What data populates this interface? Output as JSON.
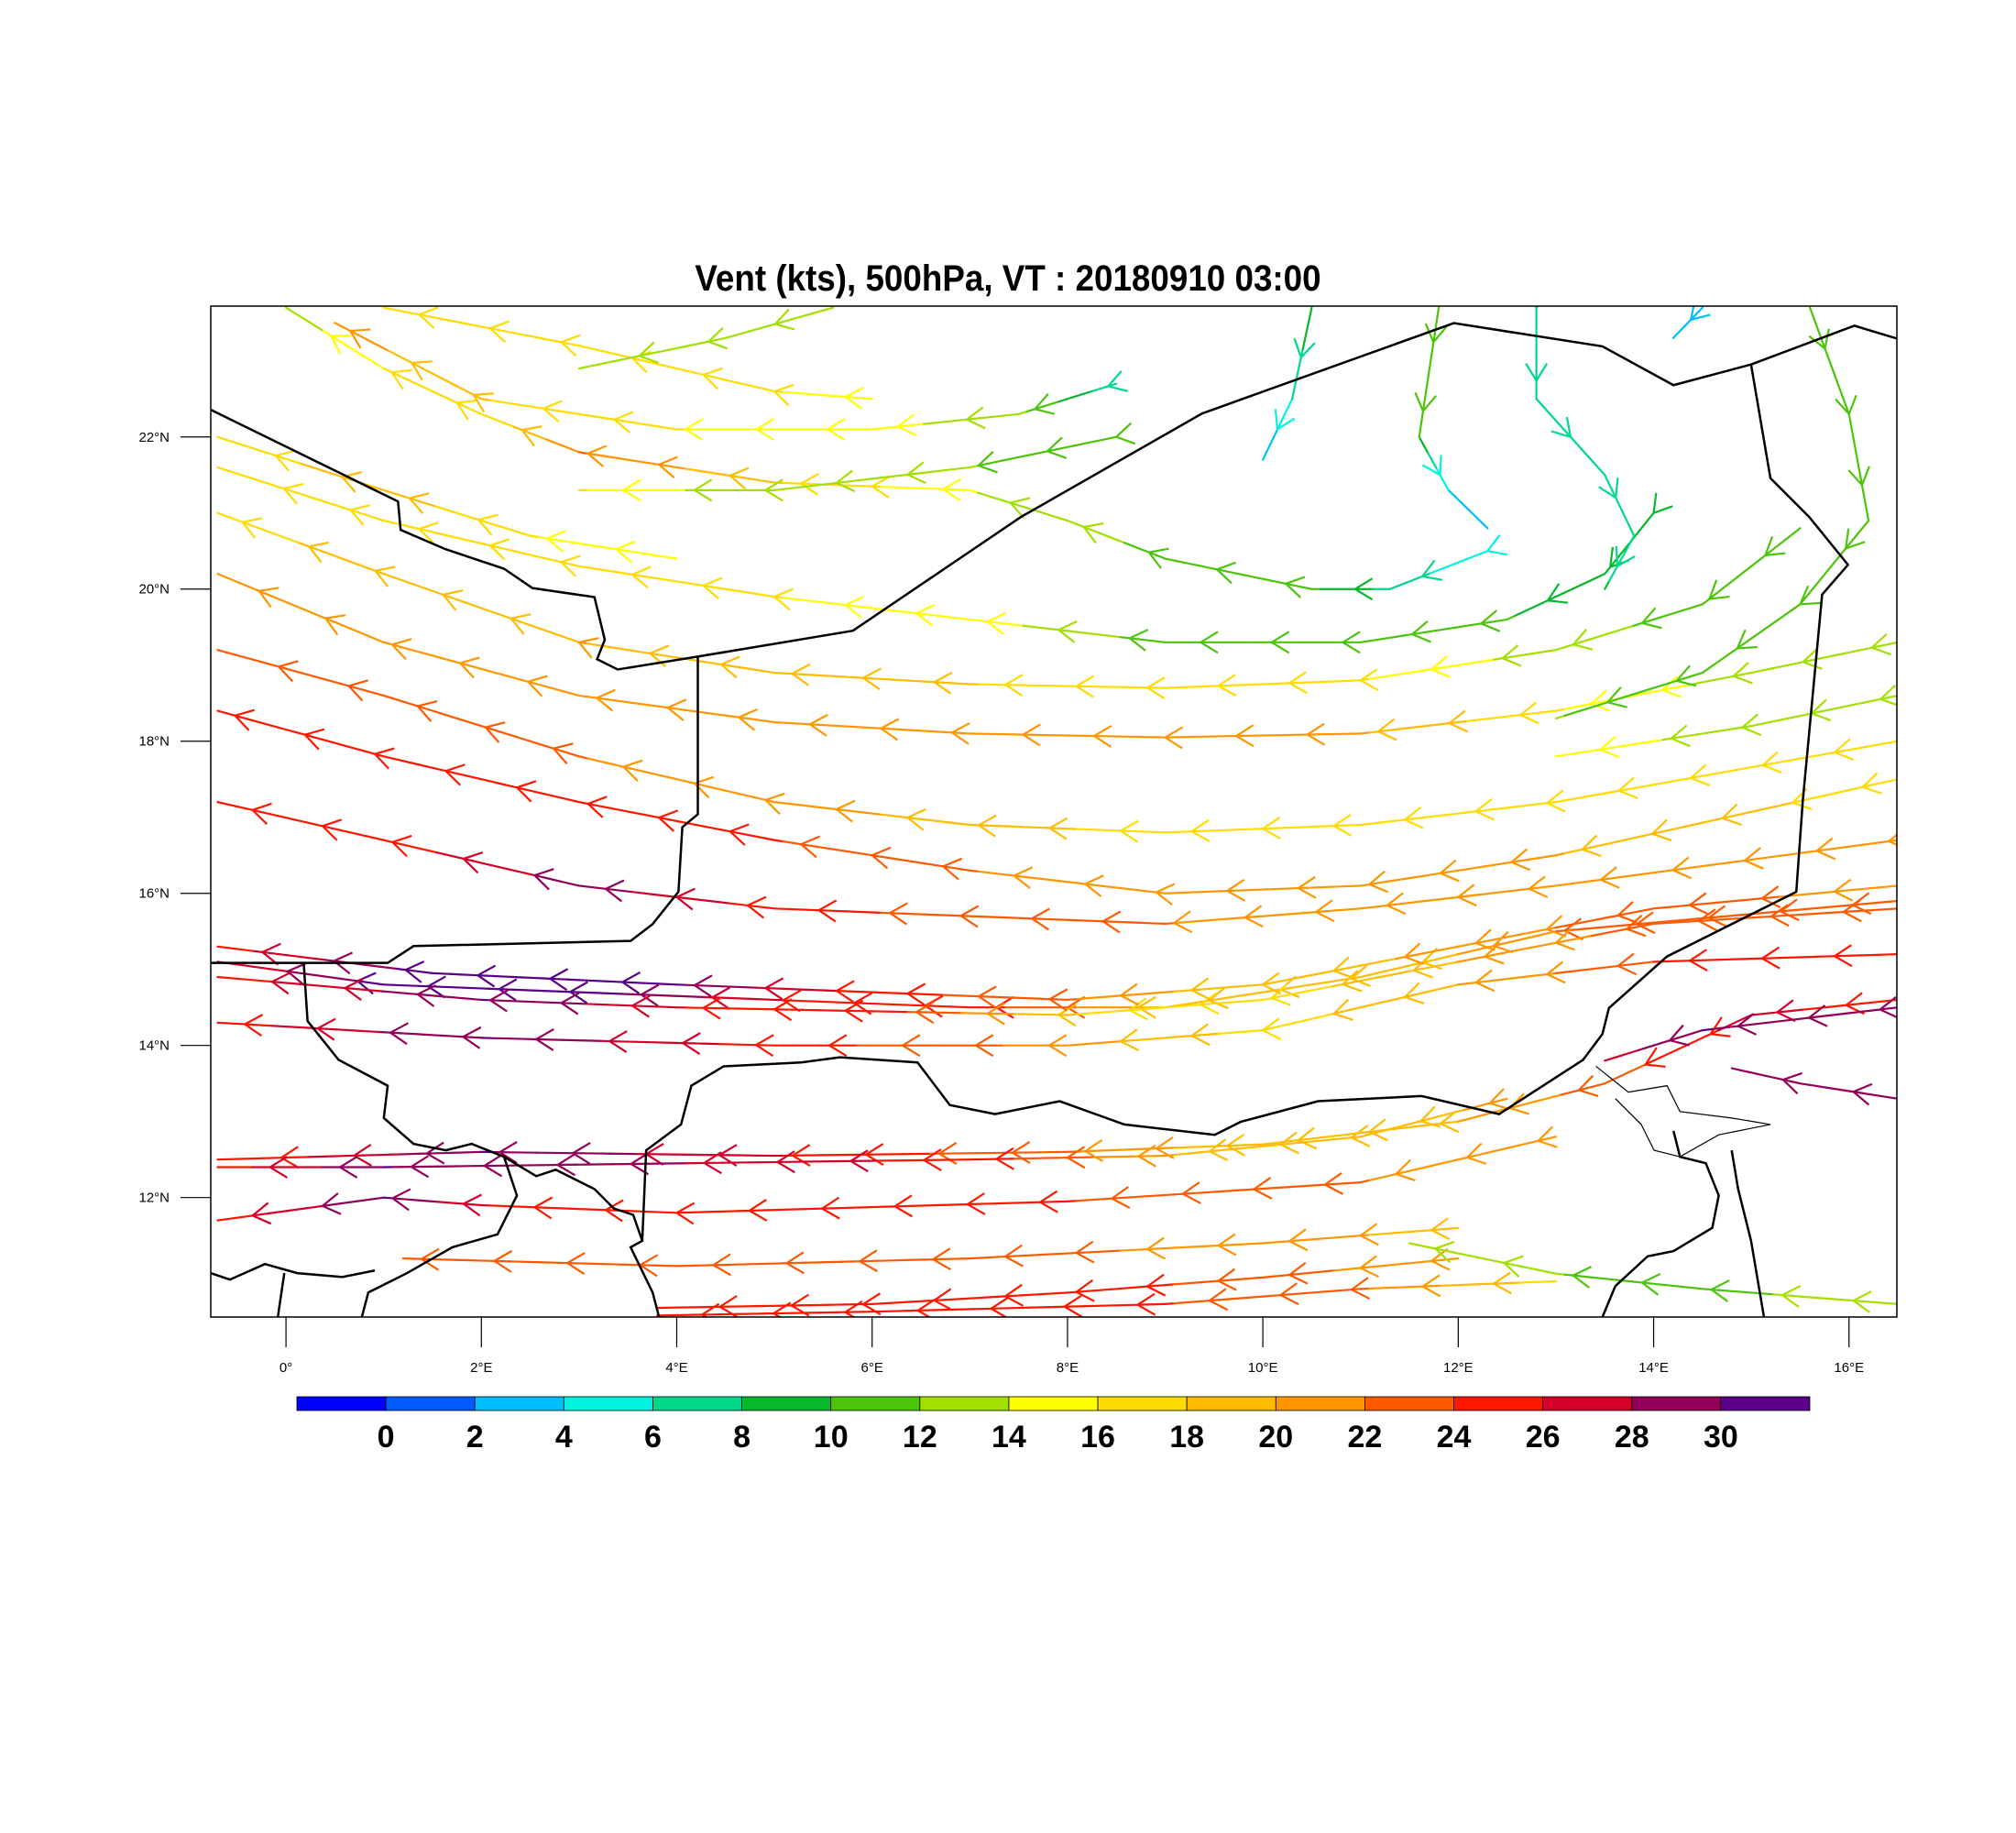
{
  "chart_data": {
    "type": "streamline",
    "title": "Vent (kts), 500hPa, VT : 20180910  03:00",
    "xlim": [
      -0.77,
      16.49
    ],
    "ylim": [
      10.43,
      23.72
    ],
    "x_ticks": [
      {
        "v": 0,
        "label": "0°"
      },
      {
        "v": 2,
        "label": "2°E"
      },
      {
        "v": 4,
        "label": "4°E"
      },
      {
        "v": 6,
        "label": "6°E"
      },
      {
        "v": 8,
        "label": "8°E"
      },
      {
        "v": 10,
        "label": "10°E"
      },
      {
        "v": 12,
        "label": "12°E"
      },
      {
        "v": 14,
        "label": "14°E"
      },
      {
        "v": 16,
        "label": "16°E"
      }
    ],
    "y_ticks": [
      {
        "v": 12,
        "label": "12°N"
      },
      {
        "v": 14,
        "label": "14°N"
      },
      {
        "v": 16,
        "label": "16°N"
      },
      {
        "v": 18,
        "label": "18°N"
      },
      {
        "v": 20,
        "label": "20°N"
      },
      {
        "v": 22,
        "label": "22°N"
      }
    ],
    "colorbar": {
      "levels": [
        "0",
        "2",
        "4",
        "6",
        "8",
        "10",
        "12",
        "14",
        "16",
        "18",
        "20",
        "22",
        "24",
        "26",
        "28",
        "30"
      ],
      "colors": [
        "#0000ff",
        "#005aff",
        "#00bfff",
        "#00f5e0",
        "#00d88a",
        "#05b82e",
        "#4cc40a",
        "#a2e000",
        "#ffff00",
        "#ffdc00",
        "#ffbc00",
        "#ff9600",
        "#ff5a00",
        "#ff1600",
        "#d4002a",
        "#920058",
        "#5a0087"
      ]
    },
    "streamlines_note_units": "lon, lat, speed(kts); flow toward first point",
    "streamlines": [
      [
        [
          -0.7,
          15.1,
          26
        ],
        [
          1,
          14.8,
          31
        ],
        [
          3,
          14.7,
          31
        ],
        [
          5,
          14.6,
          26
        ],
        [
          7,
          14.5,
          25
        ],
        [
          9,
          14.5,
          19
        ],
        [
          11,
          14.9,
          18
        ],
        [
          13,
          15.5,
          22
        ],
        [
          16.5,
          15.9,
          22
        ]
      ],
      [
        [
          -0.7,
          14.9,
          25
        ],
        [
          2,
          14.6,
          30
        ],
        [
          4,
          14.5,
          26
        ],
        [
          6,
          14.45,
          25
        ],
        [
          8,
          14.4,
          18
        ],
        [
          10,
          14.6,
          17
        ],
        [
          12,
          15.1,
          20
        ],
        [
          14,
          15.6,
          23
        ],
        [
          16.5,
          15.8,
          22
        ]
      ],
      [
        [
          -0.7,
          15.3,
          25
        ],
        [
          1.5,
          14.95,
          31
        ],
        [
          4,
          14.8,
          30
        ],
        [
          6,
          14.7,
          25
        ],
        [
          8,
          14.6,
          22
        ],
        [
          10,
          14.8,
          18
        ],
        [
          12,
          15.3,
          21
        ],
        [
          14,
          15.8,
          23
        ],
        [
          16.5,
          16.1,
          21
        ]
      ],
      [
        [
          -0.7,
          14.3,
          25
        ],
        [
          2,
          14.1,
          30
        ],
        [
          5,
          14.0,
          25
        ],
        [
          8,
          14.0,
          21
        ],
        [
          10,
          14.2,
          17
        ],
        [
          12,
          14.8,
          20
        ],
        [
          14,
          15.1,
          24
        ],
        [
          16.5,
          15.2,
          24
        ]
      ],
      [
        [
          -0.7,
          12.5,
          24
        ],
        [
          2,
          12.6,
          30
        ],
        [
          5,
          12.55,
          26
        ],
        [
          8,
          12.6,
          22
        ],
        [
          10,
          12.7,
          18
        ],
        [
          12,
          13.0,
          20
        ],
        [
          13.5,
          13.5,
          23
        ],
        [
          15,
          14.4,
          27
        ],
        [
          16.5,
          14.6,
          24
        ]
      ],
      [
        [
          -0.7,
          12.4,
          25
        ],
        [
          1,
          12.4,
          30
        ],
        [
          4,
          12.45,
          28
        ],
        [
          7,
          12.5,
          25
        ],
        [
          9,
          12.55,
          20
        ],
        [
          11,
          12.8,
          18
        ],
        [
          12.5,
          13.3,
          21
        ]
      ],
      [
        [
          -0.7,
          11.7,
          25
        ],
        [
          1,
          12.0,
          30
        ],
        [
          2,
          11.9,
          26
        ],
        [
          4,
          11.8,
          25
        ],
        [
          8,
          11.95,
          24
        ],
        [
          11,
          12.2,
          22
        ],
        [
          13,
          12.8,
          20
        ]
      ],
      [
        [
          1.2,
          11.2,
          23
        ],
        [
          4,
          11.1,
          23
        ],
        [
          7,
          11.2,
          23
        ],
        [
          10,
          11.4,
          21
        ],
        [
          12,
          11.6,
          19
        ]
      ],
      [
        [
          3.8,
          10.55,
          24
        ],
        [
          6,
          10.6,
          25
        ],
        [
          8,
          10.75,
          25
        ],
        [
          10,
          10.95,
          23
        ],
        [
          12,
          11.2,
          20
        ]
      ],
      [
        [
          3.8,
          10.45,
          25
        ],
        [
          6,
          10.5,
          24
        ],
        [
          9,
          10.6,
          24
        ],
        [
          11,
          10.8,
          22
        ],
        [
          13,
          10.9,
          17
        ]
      ],
      [
        [
          11.5,
          11.4,
          13
        ],
        [
          13,
          11.0,
          12
        ],
        [
          14.5,
          10.8,
          11
        ],
        [
          16.5,
          10.6,
          14
        ]
      ],
      [
        [
          13.5,
          13.8,
          27
        ],
        [
          14.5,
          14.2,
          30
        ],
        [
          16.5,
          14.5,
          28
        ]
      ],
      [
        [
          14.8,
          13.7,
          28
        ],
        [
          15.5,
          13.5,
          29
        ],
        [
          16.5,
          13.3,
          30
        ]
      ],
      [
        [
          -0.7,
          17.2,
          25
        ],
        [
          1,
          16.7,
          25
        ],
        [
          3,
          16.1,
          29
        ],
        [
          5,
          15.8,
          25
        ],
        [
          7,
          15.7,
          23
        ],
        [
          9,
          15.6,
          22
        ],
        [
          11,
          15.8,
          21
        ],
        [
          13,
          16.1,
          21
        ],
        [
          16.5,
          16.7,
          20
        ]
      ],
      [
        [
          -0.7,
          18.4,
          24
        ],
        [
          1,
          17.8,
          24
        ],
        [
          3,
          17.2,
          25
        ],
        [
          5,
          16.7,
          24
        ],
        [
          7,
          16.3,
          22
        ],
        [
          9,
          16.0,
          20
        ],
        [
          11,
          16.1,
          21
        ],
        [
          13,
          16.5,
          20
        ],
        [
          16.5,
          17.5,
          17
        ]
      ],
      [
        [
          -0.7,
          19.2,
          22
        ],
        [
          1,
          18.6,
          23
        ],
        [
          3,
          17.8,
          22
        ],
        [
          5,
          17.2,
          21
        ],
        [
          7,
          16.9,
          19
        ],
        [
          9,
          16.8,
          17
        ],
        [
          11,
          16.9,
          17
        ],
        [
          13,
          17.2,
          17
        ],
        [
          16.5,
          18.0,
          16
        ]
      ],
      [
        [
          -0.7,
          20.2,
          20
        ],
        [
          1,
          19.3,
          21
        ],
        [
          3,
          18.6,
          21
        ],
        [
          5,
          18.25,
          20
        ],
        [
          7,
          18.1,
          21
        ],
        [
          9,
          18.05,
          21
        ],
        [
          11,
          18.1,
          20
        ],
        [
          13,
          18.4,
          16
        ],
        [
          15,
          18.9,
          13
        ],
        [
          16.5,
          19.3,
          12
        ]
      ],
      [
        [
          -0.7,
          21.0,
          17
        ],
        [
          1,
          20.2,
          19
        ],
        [
          3,
          19.3,
          20
        ],
        [
          5,
          18.9,
          19
        ],
        [
          7,
          18.75,
          18
        ],
        [
          9,
          18.7,
          17
        ],
        [
          11,
          18.8,
          16
        ],
        [
          13,
          19.2,
          13
        ],
        [
          14.5,
          19.8,
          11
        ],
        [
          15.5,
          20.8,
          11
        ]
      ],
      [
        [
          -0.7,
          21.6,
          16
        ],
        [
          1,
          20.9,
          17
        ],
        [
          3,
          20.3,
          16
        ],
        [
          5,
          19.9,
          16
        ],
        [
          7,
          19.6,
          15
        ],
        [
          9,
          19.3,
          11
        ],
        [
          11,
          19.3,
          11
        ],
        [
          12.5,
          19.6,
          10
        ],
        [
          13.5,
          20.2,
          9
        ],
        [
          14,
          21.0,
          9
        ]
      ],
      [
        [
          0,
          23.7,
          13
        ],
        [
          1,
          22.9,
          16
        ],
        [
          2,
          22.3,
          16
        ],
        [
          3,
          21.8,
          22
        ],
        [
          5,
          21.4,
          18
        ],
        [
          7,
          21.3,
          14
        ],
        [
          8,
          20.9,
          13
        ],
        [
          9,
          20.4,
          11
        ],
        [
          10.5,
          20.0,
          10
        ],
        [
          11.3,
          20.0,
          7
        ],
        [
          12.3,
          20.5,
          4
        ]
      ],
      [
        [
          1,
          23.7,
          16
        ],
        [
          3,
          23.2,
          16
        ],
        [
          5,
          22.6,
          16
        ],
        [
          6,
          22.5,
          14
        ]
      ],
      [
        [
          0.5,
          23.5,
          21
        ],
        [
          2,
          22.5,
          18
        ],
        [
          4,
          22.1,
          16
        ],
        [
          6,
          22.1,
          15
        ],
        [
          7.5,
          22.3,
          12
        ],
        [
          8.5,
          22.7,
          6
        ]
      ],
      [
        [
          3,
          22.9,
          13
        ],
        [
          4.5,
          23.3,
          12
        ],
        [
          5.6,
          23.7,
          12
        ]
      ],
      [
        [
          3,
          21.3,
          16
        ],
        [
          5,
          21.3,
          12
        ],
        [
          7,
          21.6,
          12
        ],
        [
          8.5,
          22.0,
          11
        ]
      ],
      [
        [
          13.5,
          20.0,
          8
        ],
        [
          13.8,
          20.7,
          7
        ],
        [
          13.5,
          21.5,
          7
        ],
        [
          12.8,
          22.5,
          6
        ],
        [
          12.8,
          23.7,
          6
        ]
      ],
      [
        [
          12.3,
          20.8,
          3
        ],
        [
          11.9,
          21.3,
          4
        ],
        [
          11.6,
          22.0,
          10
        ],
        [
          11.8,
          23.7,
          10
        ]
      ],
      [
        [
          13,
          18.3,
          12
        ],
        [
          14.5,
          18.9,
          11
        ],
        [
          15.5,
          19.8,
          11
        ],
        [
          16.2,
          20.9,
          11
        ],
        [
          16.0,
          22.3,
          10
        ],
        [
          15.6,
          23.7,
          11
        ]
      ],
      [
        [
          10,
          21.7,
          2
        ],
        [
          10.3,
          22.5,
          6
        ],
        [
          10.5,
          23.7,
          10
        ]
      ],
      [
        [
          14.2,
          23.3,
          2
        ],
        [
          14.5,
          23.7,
          3
        ]
      ],
      [
        [
          -0.7,
          22.0,
          17
        ],
        [
          1,
          21.3,
          19
        ],
        [
          2.5,
          20.7,
          16
        ],
        [
          4,
          20.4,
          15
        ]
      ],
      [
        [
          13,
          17.8,
          15
        ],
        [
          15,
          18.2,
          13
        ],
        [
          16.5,
          18.6,
          13
        ]
      ]
    ]
  }
}
